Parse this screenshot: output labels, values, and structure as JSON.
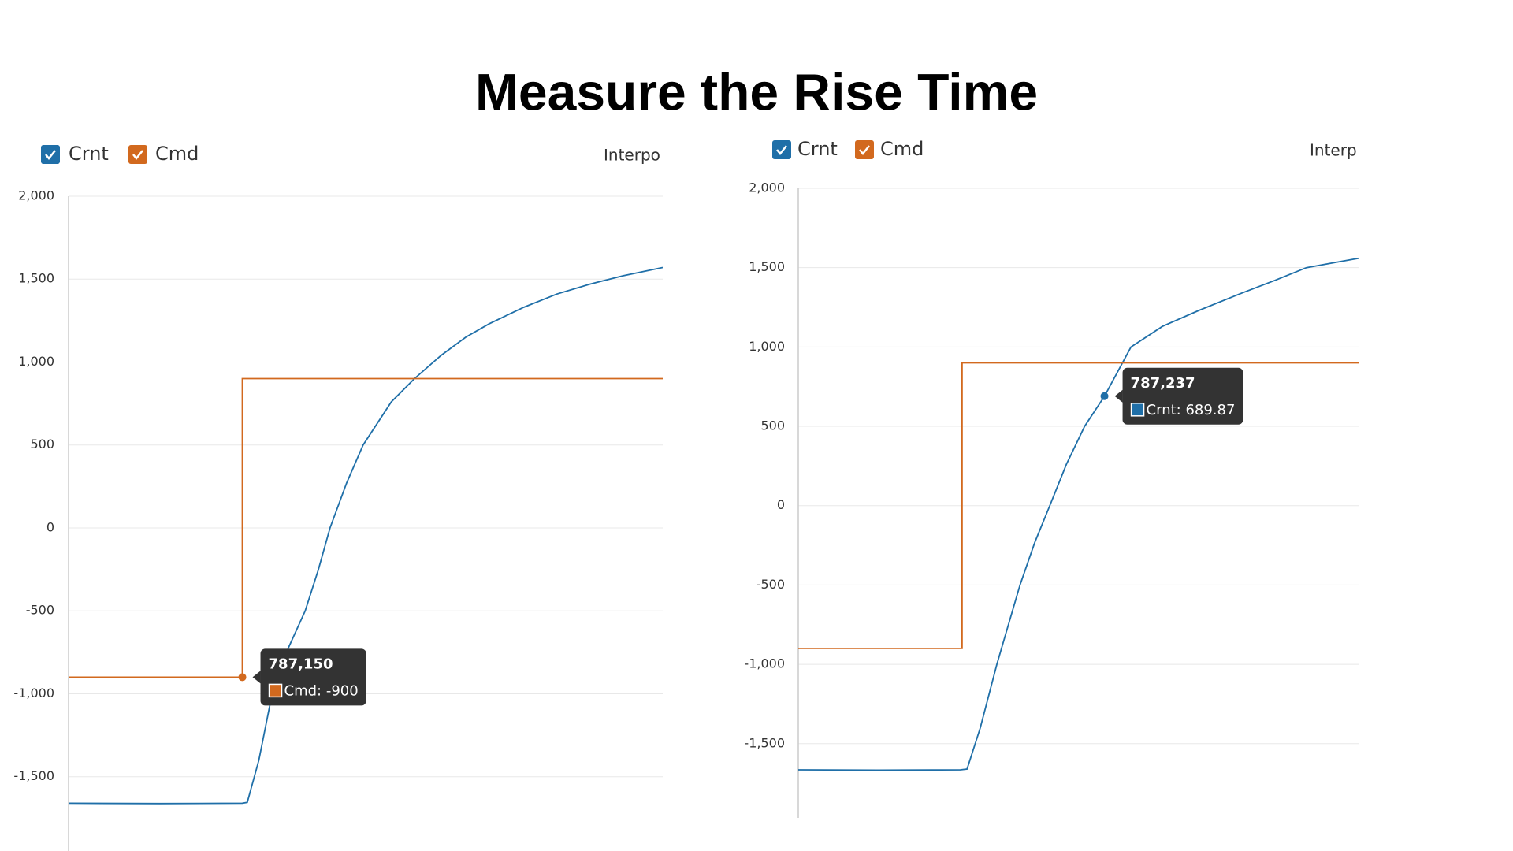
{
  "title": "Measure the Rise Time",
  "chart_data": [
    {
      "type": "line",
      "control_label": "Interpo",
      "xlim": [
        787045,
        787404
      ],
      "ylim": [
        -1948,
        2000
      ],
      "yticks": [
        {
          "value": 2000,
          "label": "2,000"
        },
        {
          "value": 1500,
          "label": "1,500"
        },
        {
          "value": 1000,
          "label": "1,000"
        },
        500,
        0,
        -500,
        {
          "value": -1000,
          "label": "-1,000"
        },
        {
          "value": -1500,
          "label": "-1,500"
        }
      ],
      "grid": true,
      "series": [
        {
          "name": "Crnt",
          "color": "#1f6fa8",
          "x": [
            787045,
            787100,
            787150,
            787153,
            787160,
            787168,
            787178,
            787188,
            787196,
            787203,
            787213,
            787223,
            787240,
            787254,
            787270,
            787285,
            787299,
            787320,
            787340,
            787360,
            787380,
            787404
          ],
          "values": [
            -1660,
            -1662,
            -1660,
            -1655,
            -1400,
            -1000,
            -720,
            -500,
            -250,
            0,
            270,
            500,
            760,
            900,
            1040,
            1150,
            1230,
            1330,
            1410,
            1470,
            1520,
            1570
          ]
        },
        {
          "name": "Cmd",
          "color": "#d2691e",
          "x": [
            787045,
            787150,
            787150,
            787404
          ],
          "values": [
            -900,
            -900,
            900,
            900
          ]
        }
      ],
      "tooltip": {
        "x": 787150,
        "y": -900,
        "title": "787,150",
        "text": "Cmd: -900",
        "color": "#d2691e"
      }
    },
    {
      "type": "line",
      "control_label": "Interp",
      "xlim": [
        787052,
        787391
      ],
      "ylim": [
        -1968,
        2000
      ],
      "yticks": [
        {
          "value": 2000,
          "label": "2,000"
        },
        {
          "value": 1500,
          "label": "1,500"
        },
        {
          "value": 1000,
          "label": "1,000"
        },
        500,
        0,
        -500,
        {
          "value": -1000,
          "label": "-1,000"
        },
        {
          "value": -1500,
          "label": "-1,500"
        }
      ],
      "grid": true,
      "series": [
        {
          "name": "Crnt",
          "color": "#1f6fa8",
          "x": [
            787052,
            787100,
            787150,
            787154,
            787162,
            787172,
            787186,
            787195,
            787204,
            787214,
            787225,
            787237,
            787253,
            787272,
            787294,
            787320,
            787340,
            787359,
            787375,
            787391
          ],
          "values": [
            -1665,
            -1667,
            -1665,
            -1660,
            -1400,
            -1000,
            -500,
            -230,
            0,
            260,
            500,
            689.87,
            1000,
            1130,
            1230,
            1340,
            1420,
            1500,
            1530,
            1560
          ]
        },
        {
          "name": "Cmd",
          "color": "#d2691e",
          "x": [
            787052,
            787151,
            787151,
            787391
          ],
          "values": [
            -900,
            -900,
            900,
            900
          ]
        }
      ],
      "tooltip": {
        "x": 787237,
        "y": 689.87,
        "title": "787,237",
        "text": "Crnt: 689.87",
        "color": "#1f6fa8"
      }
    }
  ]
}
